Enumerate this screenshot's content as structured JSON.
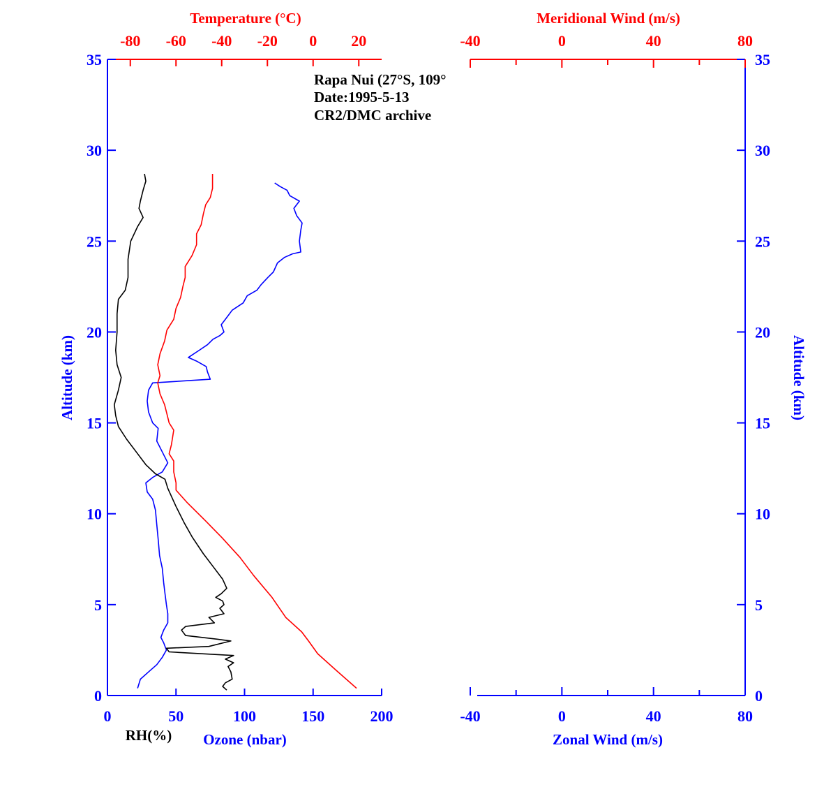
{
  "colors": {
    "blue": "#0000ff",
    "red": "#ff0000",
    "black": "#000000"
  },
  "chart_data": [
    {
      "type": "line",
      "title_lines": [
        "Rapa Nui (27°S, 109°",
        "Date:1995-5-13",
        "CR2/DMC archive"
      ],
      "ylabel": "Altitude (km)",
      "ylim": [
        0,
        35
      ],
      "yticks": [
        "0",
        "5",
        "10",
        "15",
        "20",
        "25",
        "30",
        "35"
      ],
      "x_bottom": {
        "label": "Ozone (nbar)",
        "range": [
          0,
          200
        ],
        "ticks": [
          "0",
          "50",
          "100",
          "150",
          "200"
        ]
      },
      "x_bottom_rh_label": "RH(%)",
      "x_top": {
        "label": "Temperature (°C)",
        "range": [
          -90,
          30
        ],
        "ticks": [
          "-80",
          "-60",
          "-40",
          "-20",
          "0",
          "20"
        ]
      },
      "series": [
        {
          "name": "Ozone (nbar)",
          "axis": "ozone",
          "color": "#0000ff",
          "points": [
            [
              22,
              0.4
            ],
            [
              24,
              0.9
            ],
            [
              30,
              1.3
            ],
            [
              36,
              1.7
            ],
            [
              40,
              2.1
            ],
            [
              43,
              2.5
            ],
            [
              41,
              2.9
            ],
            [
              39,
              3.2
            ],
            [
              41,
              3.6
            ],
            [
              44,
              4.0
            ],
            [
              44,
              4.5
            ],
            [
              43,
              5.0
            ],
            [
              42,
              5.6
            ],
            [
              41,
              6.2
            ],
            [
              40,
              7.0
            ],
            [
              38,
              7.7
            ],
            [
              37,
              8.6
            ],
            [
              36,
              9.4
            ],
            [
              35,
              10.2
            ],
            [
              33,
              10.8
            ],
            [
              29,
              11.2
            ],
            [
              28,
              11.7
            ],
            [
              33,
              12.0
            ],
            [
              40,
              12.3
            ],
            [
              44,
              12.8
            ],
            [
              40,
              13.4
            ],
            [
              36,
              14.0
            ],
            [
              37,
              14.7
            ],
            [
              33,
              15.0
            ],
            [
              30,
              15.6
            ],
            [
              29,
              16.2
            ],
            [
              30,
              16.8
            ],
            [
              33,
              17.2
            ],
            [
              75,
              17.4
            ],
            [
              73,
              17.8
            ],
            [
              72,
              18.1
            ],
            [
              65,
              18.4
            ],
            [
              59,
              18.6
            ],
            [
              67,
              19.0
            ],
            [
              73,
              19.3
            ],
            [
              77,
              19.6
            ],
            [
              82,
              19.8
            ],
            [
              85,
              20.0
            ],
            [
              83,
              20.4
            ],
            [
              87,
              20.8
            ],
            [
              91,
              21.2
            ],
            [
              99,
              21.6
            ],
            [
              102,
              22.0
            ],
            [
              109,
              22.3
            ],
            [
              112,
              22.6
            ],
            [
              117,
              23.0
            ],
            [
              121,
              23.3
            ],
            [
              124,
              23.8
            ],
            [
              129,
              24.1
            ],
            [
              135,
              24.3
            ],
            [
              141,
              24.4
            ],
            [
              140,
              25.0
            ],
            [
              141,
              25.6
            ],
            [
              142,
              26.0
            ],
            [
              138,
              26.4
            ],
            [
              136,
              26.8
            ],
            [
              140,
              27.2
            ],
            [
              133,
              27.5
            ],
            [
              131,
              27.8
            ],
            [
              126,
              28.0
            ],
            [
              122,
              28.2
            ]
          ]
        },
        {
          "name": "Temperature (°C)",
          "axis": "temperature",
          "color": "#ff0000",
          "points": [
            [
              19,
              0.4
            ],
            [
              10,
              1.4
            ],
            [
              2,
              2.3
            ],
            [
              -2,
              3.0
            ],
            [
              -5,
              3.5
            ],
            [
              -12,
              4.3
            ],
            [
              -18,
              5.4
            ],
            [
              -26,
              6.6
            ],
            [
              -32,
              7.6
            ],
            [
              -40,
              8.7
            ],
            [
              -47,
              9.6
            ],
            [
              -55,
              10.6
            ],
            [
              -60,
              11.3
            ],
            [
              -60,
              11.7
            ],
            [
              -61,
              12.3
            ],
            [
              -61,
              12.9
            ],
            [
              -63,
              13.3
            ],
            [
              -62,
              13.8
            ],
            [
              -61,
              14.6
            ],
            [
              -63,
              15.0
            ],
            [
              -64,
              15.5
            ],
            [
              -65,
              16.0
            ],
            [
              -67,
              16.6
            ],
            [
              -68,
              17.2
            ],
            [
              -67,
              17.6
            ],
            [
              -68,
              18.2
            ],
            [
              -67,
              18.8
            ],
            [
              -65,
              19.5
            ],
            [
              -64,
              20.1
            ],
            [
              -61,
              20.7
            ],
            [
              -60,
              21.3
            ],
            [
              -58,
              21.9
            ],
            [
              -57,
              22.5
            ],
            [
              -56,
              23.0
            ],
            [
              -56,
              23.6
            ],
            [
              -53,
              24.2
            ],
            [
              -51,
              24.8
            ],
            [
              -51,
              25.4
            ],
            [
              -49,
              25.9
            ],
            [
              -48,
              26.5
            ],
            [
              -47,
              27.0
            ],
            [
              -45,
              27.4
            ],
            [
              -44,
              27.9
            ],
            [
              -44,
              28.3
            ],
            [
              -44,
              28.7
            ]
          ]
        },
        {
          "name": "RH(%)",
          "axis": "ozone",
          "color": "#000000",
          "points": [
            [
              87,
              0.3
            ],
            [
              84,
              0.5
            ],
            [
              86,
              0.7
            ],
            [
              91,
              0.9
            ],
            [
              90,
              1.3
            ],
            [
              88,
              1.6
            ],
            [
              92,
              1.8
            ],
            [
              86,
              2.0
            ],
            [
              92,
              2.2
            ],
            [
              45,
              2.4
            ],
            [
              43,
              2.6
            ],
            [
              74,
              2.7
            ],
            [
              90,
              3.0
            ],
            [
              80,
              3.1
            ],
            [
              57,
              3.3
            ],
            [
              54,
              3.6
            ],
            [
              57,
              3.8
            ],
            [
              78,
              4.0
            ],
            [
              74,
              4.3
            ],
            [
              85,
              4.5
            ],
            [
              82,
              4.8
            ],
            [
              85,
              5.0
            ],
            [
              84,
              5.2
            ],
            [
              79,
              5.4
            ],
            [
              83,
              5.6
            ],
            [
              87,
              5.9
            ],
            [
              84,
              6.4
            ],
            [
              78,
              7.0
            ],
            [
              70,
              7.8
            ],
            [
              62,
              8.7
            ],
            [
              56,
              9.5
            ],
            [
              50,
              10.4
            ],
            [
              44,
              11.4
            ],
            [
              42,
              11.9
            ],
            [
              35,
              12.2
            ],
            [
              28,
              12.7
            ],
            [
              21,
              13.4
            ],
            [
              14,
              14.1
            ],
            [
              8,
              14.8
            ],
            [
              6,
              15.4
            ],
            [
              5,
              16.0
            ],
            [
              8,
              16.8
            ],
            [
              10,
              17.5
            ],
            [
              7,
              18.2
            ],
            [
              6,
              19.0
            ],
            [
              7,
              20.0
            ],
            [
              7,
              21.0
            ],
            [
              8,
              21.8
            ],
            [
              13,
              22.3
            ],
            [
              15,
              23.0
            ],
            [
              15,
              24.0
            ],
            [
              17,
              25.0
            ],
            [
              22,
              25.8
            ],
            [
              26,
              26.3
            ],
            [
              23,
              26.8
            ],
            [
              24,
              27.2
            ],
            [
              26,
              27.8
            ],
            [
              28,
              28.3
            ],
            [
              27,
              28.7
            ]
          ]
        }
      ]
    },
    {
      "type": "line",
      "ylabel": "Altitude (km)",
      "ylim": [
        0,
        35
      ],
      "yticks": [
        "0",
        "5",
        "10",
        "15",
        "20",
        "25",
        "30",
        "35"
      ],
      "x_bottom": {
        "label": "Zonal Wind (m/s)",
        "range": [
          -40,
          80
        ],
        "ticks": [
          "-40",
          "0",
          "40",
          "80"
        ]
      },
      "x_top": {
        "label": "Meridional Wind (m/s)",
        "range": [
          -40,
          80
        ],
        "ticks": [
          "-40",
          "0",
          "40",
          "80"
        ]
      },
      "series": []
    }
  ]
}
